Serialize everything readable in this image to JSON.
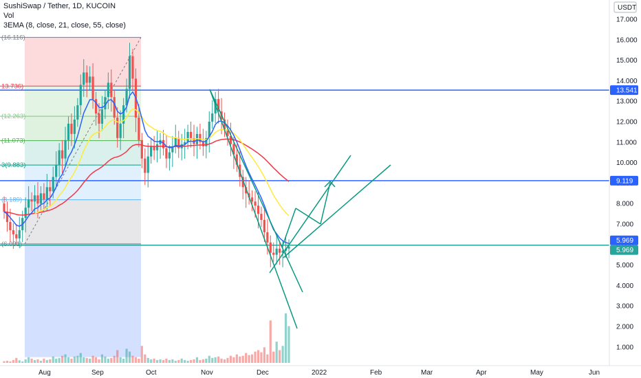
{
  "header": {
    "title": "SushiSwap / Tether, 1D, KUCOIN",
    "vol": "Vol",
    "ema": "3EMA (8, close, 21, close, 55, close)"
  },
  "currency": "USDT",
  "chart_data": {
    "type": "candlestick",
    "ylim": [
      0.5,
      17.6
    ],
    "y_ticks": [
      "1.000",
      "2.000",
      "3.000",
      "4.000",
      "5.000",
      "6.000",
      "7.000",
      "8.000",
      "9.000",
      "10.000",
      "11.000",
      "12.000",
      "13.000",
      "14.000",
      "15.000",
      "16.000",
      "17.000"
    ],
    "x_ticks": [
      "Aug",
      "Sep",
      "Oct",
      "Nov",
      "Dec",
      "2022",
      "Feb",
      "Mar",
      "Apr",
      "May",
      "Jun"
    ],
    "horizontal_levels": [
      {
        "value": 13.541,
        "label": "13.541",
        "color": "#2962ff"
      },
      {
        "value": 9.119,
        "label": "9.119",
        "color": "#2962ff"
      },
      {
        "value": 5.969,
        "label": "5.969",
        "color": "#2962ff"
      },
      {
        "value": 5.969,
        "label": "5.969",
        "color": "#26a69a"
      }
    ],
    "fib_levels": [
      {
        "value": 16.116,
        "label": "(16.116)",
        "color": "#787b86"
      },
      {
        "value": 13.736,
        "label": "13.736)",
        "color": "#f23645"
      },
      {
        "value": 12.263,
        "label": "(12.263)",
        "color": "#81c784"
      },
      {
        "value": 11.073,
        "label": "(11.073)",
        "color": "#4caf50"
      },
      {
        "value": 9.883,
        "label": "3(9.883)",
        "color": "#089981"
      },
      {
        "value": 8.189,
        "label": "(8.189)",
        "color": "#64b5f6"
      },
      {
        "value": 6.031,
        "label": "(6.031)",
        "color": "#787b86"
      }
    ],
    "closes": [
      7.6,
      7.1,
      6.7,
      6.5,
      6.3,
      6.7,
      7.3,
      7.8,
      8.2,
      8.1,
      8.4,
      8.0,
      8.5,
      8.2,
      8.8,
      8.6,
      9.3,
      9.9,
      10.6,
      10.2,
      11.1,
      11.9,
      11.4,
      12.1,
      12.8,
      13.8,
      14.4,
      13.9,
      14.2,
      13.1,
      12.4,
      11.9,
      12.6,
      13.2,
      13.9,
      13.2,
      12.2,
      11.2,
      11.9,
      12.8,
      13.6,
      15.2,
      14.1,
      12.2,
      11.1,
      10.2,
      9.5,
      10.3,
      10.8,
      10.6,
      10.9,
      11.1,
      10.7,
      10.2,
      10.5,
      10.8,
      11.2,
      10.7,
      10.9,
      11.0,
      11.5,
      11.2,
      10.9,
      11.4,
      11.0,
      10.8,
      11.2,
      12.0,
      12.4,
      13.1,
      12.5,
      12.1,
      11.6,
      11.3,
      10.9,
      10.4,
      9.9,
      9.3,
      8.8,
      8.5,
      8.3,
      8.1,
      7.9,
      7.5,
      7.2,
      6.6,
      6.1,
      5.6,
      5.5,
      5.8,
      5.6,
      5.7,
      5.8,
      5.9
    ],
    "volumes": [
      0.12,
      0.15,
      0.1,
      0.2,
      0.35,
      0.18,
      0.1,
      0.25,
      0.4,
      0.3,
      0.2,
      0.25,
      0.15,
      0.3,
      0.2,
      0.25,
      0.45,
      0.3,
      0.35,
      0.5,
      0.6,
      0.4,
      0.3,
      0.45,
      0.5,
      0.7,
      0.4,
      0.35,
      0.3,
      0.5,
      0.4,
      0.25,
      0.6,
      0.45,
      0.3,
      0.35,
      0.5,
      0.9,
      0.4,
      0.3,
      1.0,
      0.8,
      0.5,
      0.4,
      0.3,
      1.2,
      0.6,
      0.35,
      0.25,
      0.3,
      0.2,
      0.25,
      0.2,
      0.3,
      0.2,
      0.25,
      0.15,
      0.2,
      0.3,
      0.2,
      0.15,
      0.2,
      0.25,
      0.4,
      0.2,
      0.25,
      0.3,
      0.5,
      0.35,
      0.4,
      0.45,
      0.3,
      0.25,
      0.35,
      0.5,
      0.4,
      0.6,
      0.45,
      0.5,
      0.7,
      0.55,
      0.6,
      0.8,
      0.9,
      0.75,
      1.1,
      0.6,
      3.0,
      0.8,
      1.5,
      0.9,
      1.2,
      3.5,
      2.6
    ]
  },
  "colors": {
    "up": "#26a69a",
    "down": "#ef5350",
    "ema_fast": "#2962ff",
    "ema_mid": "#ffeb3b",
    "ema_slow": "#f23645",
    "channel": "#089981"
  }
}
